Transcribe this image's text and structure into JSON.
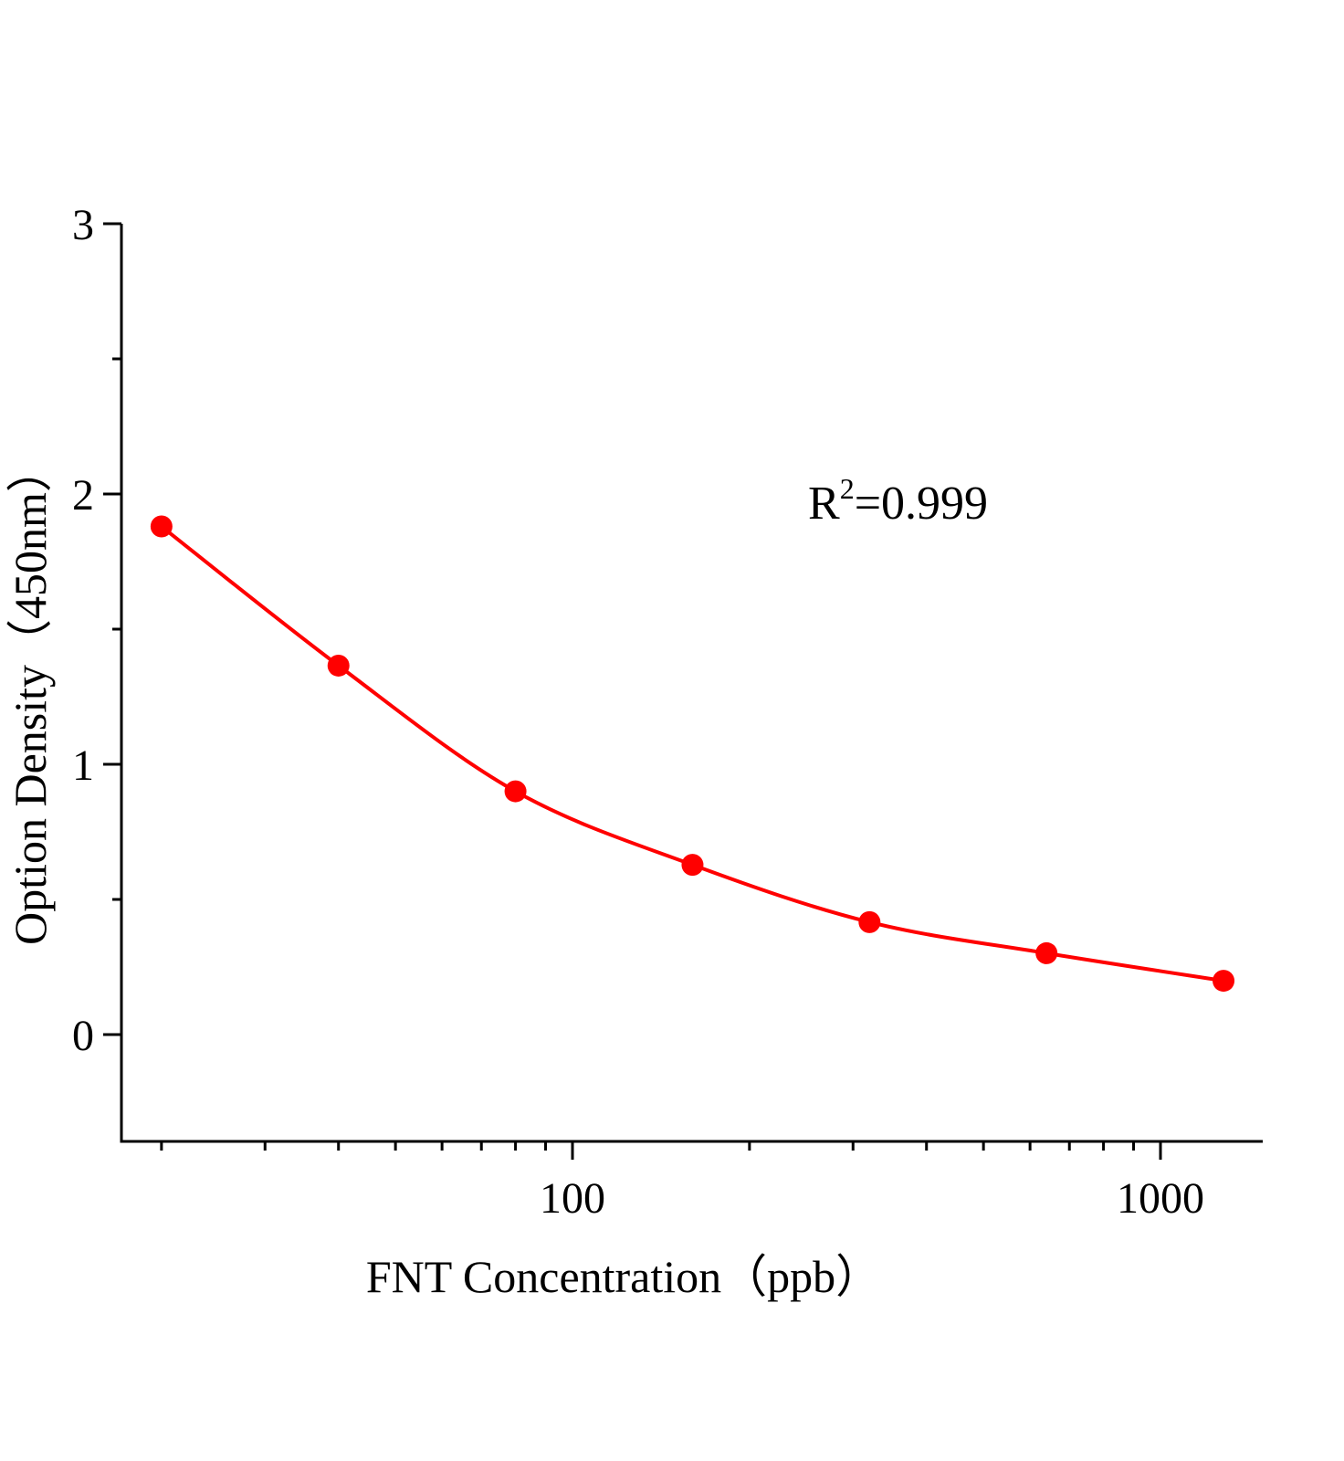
{
  "chart_data": {
    "type": "scatter",
    "xlabel": "FNT Concentration（ppb）",
    "ylabel": "Option Density（450nm）",
    "annotation": {
      "text": "R",
      "sup": "2",
      "rest": "=0.999"
    },
    "x_scale": "log",
    "xlim": [
      17,
      1500
    ],
    "ylim": [
      -0.4,
      3
    ],
    "x_ticks": [
      {
        "value": 100,
        "label": "100"
      },
      {
        "value": 1000,
        "label": "1000"
      }
    ],
    "y_ticks": [
      {
        "value": 0,
        "label": "0"
      },
      {
        "value": 1,
        "label": "1"
      },
      {
        "value": 2,
        "label": "2"
      },
      {
        "value": 3,
        "label": "3"
      }
    ],
    "grid": false,
    "color": "#ff0000",
    "series": [
      {
        "x": [
          20,
          40,
          80,
          160,
          320,
          640,
          1280
        ],
        "y": [
          1.88,
          1.365,
          0.9,
          0.628,
          0.416,
          0.301,
          0.199
        ],
        "fit_curve": true
      }
    ]
  }
}
